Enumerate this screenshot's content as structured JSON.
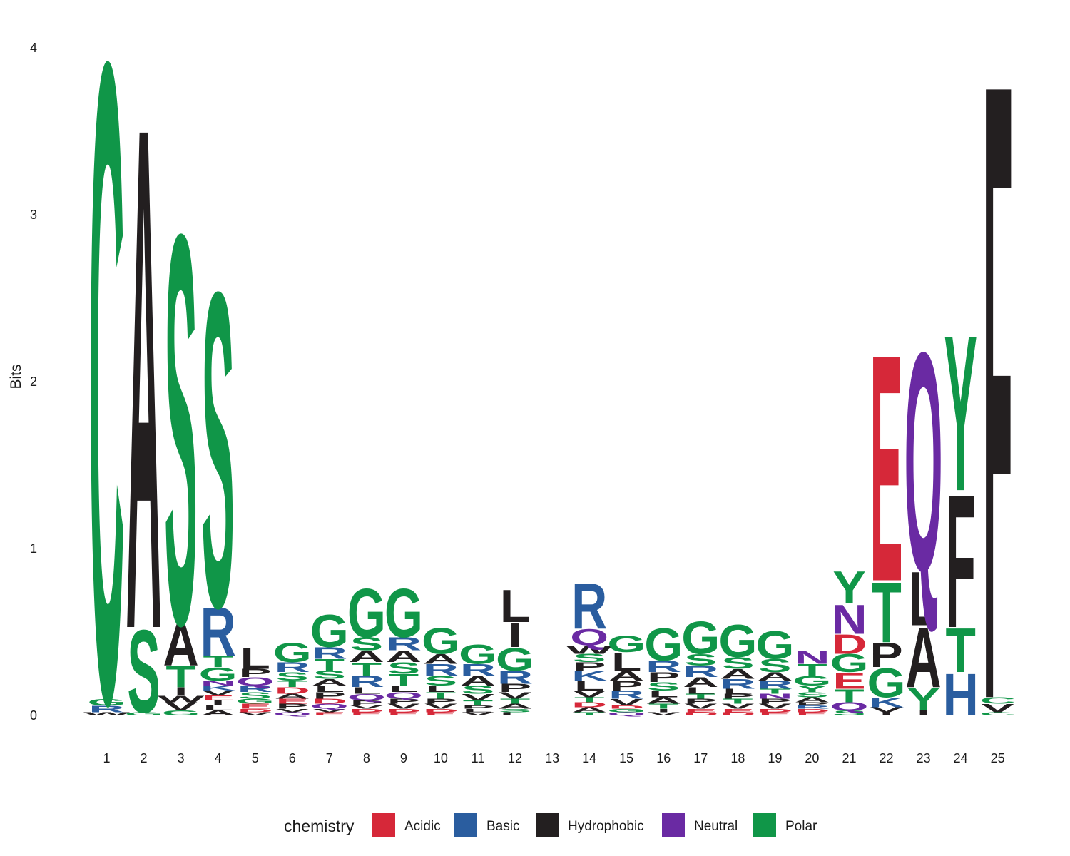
{
  "chart_data": {
    "type": "sequence-logo",
    "title": "",
    "xlabel": "",
    "ylabel": "Bits",
    "ylim": [
      0,
      4
    ],
    "yticks": [
      "0",
      "1",
      "2",
      "3",
      "4"
    ],
    "positions": [
      "1",
      "2",
      "3",
      "4",
      "5",
      "6",
      "7",
      "8",
      "9",
      "10",
      "11",
      "12",
      "13",
      "14",
      "15",
      "16",
      "17",
      "18",
      "19",
      "20",
      "21",
      "22",
      "23",
      "24",
      "25"
    ],
    "legend": {
      "title": "chemistry",
      "placement": "bottom",
      "entries": [
        {
          "label": "Acidic",
          "color": "#d62839"
        },
        {
          "label": "Basic",
          "color": "#2a5d9f"
        },
        {
          "label": "Hydrophobic",
          "color": "#231f20"
        },
        {
          "label": "Neutral",
          "color": "#6a2aa3"
        },
        {
          "label": "Polar",
          "color": "#109648"
        }
      ]
    },
    "letter_colors": {
      "A": "#231f20",
      "V": "#231f20",
      "L": "#231f20",
      "I": "#231f20",
      "P": "#231f20",
      "W": "#231f20",
      "F": "#231f20",
      "M": "#231f20",
      "G": "#109648",
      "S": "#109648",
      "T": "#109648",
      "Y": "#109648",
      "C": "#109648",
      "N": "#6a2aa3",
      "Q": "#6a2aa3",
      "K": "#2a5d9f",
      "R": "#2a5d9f",
      "H": "#2a5d9f",
      "D": "#d62839",
      "E": "#d62839"
    },
    "stacks": [
      [
        [
          "W",
          0.02
        ],
        [
          "R",
          0.04
        ],
        [
          "G",
          0.04
        ],
        [
          "C",
          3.94
        ]
      ],
      [
        [
          "G",
          0.02
        ],
        [
          "S",
          0.51
        ],
        [
          "A",
          3.1
        ]
      ],
      [
        [
          "G",
          0.03
        ],
        [
          "V",
          0.05
        ],
        [
          "W",
          0.04
        ],
        [
          "I",
          0.05
        ],
        [
          "T",
          0.13
        ],
        [
          "A",
          0.26
        ],
        [
          "S",
          2.4
        ]
      ],
      [
        [
          "A",
          0.03
        ],
        [
          "L",
          0.03
        ],
        [
          "I",
          0.03
        ],
        [
          "E",
          0.03
        ],
        [
          "V",
          0.03
        ],
        [
          "K",
          0.03
        ],
        [
          "N",
          0.03
        ],
        [
          "G",
          0.08
        ],
        [
          "T",
          0.07
        ],
        [
          "R",
          0.3
        ],
        [
          "S",
          1.94
        ]
      ],
      [
        [
          "V",
          0.02
        ],
        [
          "D",
          0.02
        ],
        [
          "E",
          0.03
        ],
        [
          "G",
          0.03
        ],
        [
          "S",
          0.04
        ],
        [
          "R",
          0.04
        ],
        [
          "Q",
          0.05
        ],
        [
          "P",
          0.05
        ],
        [
          "L",
          0.13
        ]
      ],
      [
        [
          "Q",
          0.02
        ],
        [
          "V",
          0.02
        ],
        [
          "P",
          0.03
        ],
        [
          "E",
          0.03
        ],
        [
          "A",
          0.03
        ],
        [
          "D",
          0.04
        ],
        [
          "T",
          0.04
        ],
        [
          "S",
          0.05
        ],
        [
          "R",
          0.06
        ],
        [
          "G",
          0.12
        ]
      ],
      [
        [
          "E",
          0.02
        ],
        [
          "V",
          0.02
        ],
        [
          "Q",
          0.03
        ],
        [
          "D",
          0.03
        ],
        [
          "P",
          0.04
        ],
        [
          "L",
          0.04
        ],
        [
          "A",
          0.04
        ],
        [
          "S",
          0.05
        ],
        [
          "T",
          0.07
        ],
        [
          "R",
          0.07
        ],
        [
          "G",
          0.2
        ]
      ],
      [
        [
          "E",
          0.02
        ],
        [
          "D",
          0.02
        ],
        [
          "V",
          0.02
        ],
        [
          "P",
          0.03
        ],
        [
          "Q",
          0.04
        ],
        [
          "L",
          0.04
        ],
        [
          "R",
          0.07
        ],
        [
          "T",
          0.08
        ],
        [
          "A",
          0.07
        ],
        [
          "S",
          0.08
        ],
        [
          "G",
          0.3
        ]
      ],
      [
        [
          "E",
          0.02
        ],
        [
          "D",
          0.02
        ],
        [
          "V",
          0.03
        ],
        [
          "P",
          0.03
        ],
        [
          "Q",
          0.04
        ],
        [
          "L",
          0.04
        ],
        [
          "T",
          0.07
        ],
        [
          "S",
          0.07
        ],
        [
          "A",
          0.07
        ],
        [
          "R",
          0.08
        ],
        [
          "G",
          0.3
        ]
      ],
      [
        [
          "E",
          0.02
        ],
        [
          "D",
          0.02
        ],
        [
          "V",
          0.03
        ],
        [
          "P",
          0.03
        ],
        [
          "T",
          0.04
        ],
        [
          "L",
          0.04
        ],
        [
          "S",
          0.06
        ],
        [
          "R",
          0.07
        ],
        [
          "A",
          0.06
        ],
        [
          "G",
          0.16
        ]
      ],
      [
        [
          "V",
          0.02
        ],
        [
          "L",
          0.02
        ],
        [
          "P",
          0.02
        ],
        [
          "T",
          0.03
        ],
        [
          "V",
          0.04
        ],
        [
          "S",
          0.05
        ],
        [
          "A",
          0.06
        ],
        [
          "R",
          0.07
        ],
        [
          "G",
          0.12
        ]
      ],
      [
        [
          "L",
          0.02
        ],
        [
          "S",
          0.02
        ],
        [
          "A",
          0.03
        ],
        [
          "T",
          0.03
        ],
        [
          "V",
          0.04
        ],
        [
          "P",
          0.05
        ],
        [
          "R",
          0.08
        ],
        [
          "G",
          0.14
        ],
        [
          "I",
          0.15
        ],
        [
          "L",
          0.2
        ]
      ],
      [],
      [
        [
          "T",
          0.02
        ],
        [
          "A",
          0.03
        ],
        [
          "D",
          0.03
        ],
        [
          "T",
          0.03
        ],
        [
          "V",
          0.04
        ],
        [
          "L",
          0.06
        ],
        [
          "K",
          0.06
        ],
        [
          "P",
          0.05
        ],
        [
          "S",
          0.05
        ],
        [
          "W",
          0.05
        ],
        [
          "Q",
          0.1
        ],
        [
          "R",
          0.28
        ]
      ],
      [
        [
          "Q",
          0.02
        ],
        [
          "G",
          0.02
        ],
        [
          "D",
          0.02
        ],
        [
          "V",
          0.04
        ],
        [
          "R",
          0.05
        ],
        [
          "P",
          0.06
        ],
        [
          "A",
          0.06
        ],
        [
          "L",
          0.11
        ],
        [
          "G",
          0.1
        ]
      ],
      [
        [
          "V",
          0.02
        ],
        [
          "I",
          0.02
        ],
        [
          "T",
          0.03
        ],
        [
          "A",
          0.04
        ],
        [
          "L",
          0.04
        ],
        [
          "S",
          0.05
        ],
        [
          "P",
          0.06
        ],
        [
          "R",
          0.07
        ],
        [
          "G",
          0.2
        ]
      ],
      [
        [
          "D",
          0.02
        ],
        [
          "E",
          0.02
        ],
        [
          "V",
          0.03
        ],
        [
          "P",
          0.03
        ],
        [
          "T",
          0.03
        ],
        [
          "L",
          0.04
        ],
        [
          "A",
          0.06
        ],
        [
          "R",
          0.07
        ],
        [
          "S",
          0.07
        ],
        [
          "G",
          0.2
        ]
      ],
      [
        [
          "D",
          0.02
        ],
        [
          "E",
          0.02
        ],
        [
          "V",
          0.03
        ],
        [
          "T",
          0.03
        ],
        [
          "P",
          0.03
        ],
        [
          "L",
          0.03
        ],
        [
          "R",
          0.06
        ],
        [
          "A",
          0.06
        ],
        [
          "S",
          0.07
        ],
        [
          "G",
          0.2
        ]
      ],
      [
        [
          "E",
          0.02
        ],
        [
          "D",
          0.02
        ],
        [
          "V",
          0.03
        ],
        [
          "P",
          0.03
        ],
        [
          "N",
          0.03
        ],
        [
          "T",
          0.03
        ],
        [
          "R",
          0.05
        ],
        [
          "A",
          0.05
        ],
        [
          "S",
          0.08
        ],
        [
          "G",
          0.17
        ]
      ],
      [
        [
          "E",
          0.02
        ],
        [
          "D",
          0.02
        ],
        [
          "R",
          0.02
        ],
        [
          "P",
          0.02
        ],
        [
          "A",
          0.03
        ],
        [
          "S",
          0.03
        ],
        [
          "Y",
          0.04
        ],
        [
          "G",
          0.06
        ],
        [
          "T",
          0.07
        ],
        [
          "N",
          0.08
        ]
      ],
      [
        [
          "S",
          0.03
        ],
        [
          "Q",
          0.05
        ],
        [
          "T",
          0.08
        ],
        [
          "E",
          0.1
        ],
        [
          "G",
          0.11
        ],
        [
          "D",
          0.12
        ],
        [
          "N",
          0.18
        ],
        [
          "Y",
          0.2
        ]
      ],
      [
        [
          "I",
          0.02
        ],
        [
          "V",
          0.03
        ],
        [
          "K",
          0.06
        ],
        [
          "G",
          0.18
        ],
        [
          "P",
          0.15
        ],
        [
          "T",
          0.37
        ],
        [
          "E",
          1.4
        ]
      ],
      [
        [
          "I",
          0.03
        ],
        [
          "Y",
          0.14
        ],
        [
          "A",
          0.37
        ],
        [
          "L",
          0.33
        ],
        [
          "Q",
          1.35
        ]
      ],
      [
        [
          "H",
          0.26
        ],
        [
          "T",
          0.27
        ],
        [
          "F",
          0.82
        ],
        [
          "Y",
          0.96
        ]
      ],
      [
        [
          "C",
          0.02
        ],
        [
          "V",
          0.05
        ],
        [
          "C",
          0.04
        ],
        [
          "F",
          3.81
        ]
      ]
    ]
  }
}
